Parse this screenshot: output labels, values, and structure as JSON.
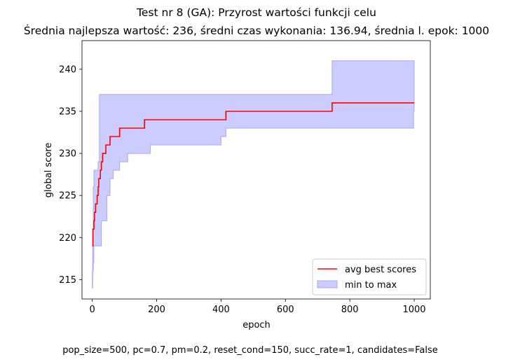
{
  "chart_data": {
    "type": "line",
    "title": "Test nr 8 (GA): Przyrost wartości funkcji celu",
    "subtitle": "Średnia najlepsza wartość: 236, średni czas wykonania: 136.94, średnia l. epok: 1000",
    "xlabel": "epoch",
    "ylabel": "global score",
    "caption": "pop_size=500, pc=0.7, pm=0.2, reset_cond=150, succ_rate=1, candidates=False",
    "xlim": [
      -32,
      1050
    ],
    "ylim": [
      212.7,
      243.4
    ],
    "xticks": [
      0,
      200,
      400,
      600,
      800,
      1000
    ],
    "yticks": [
      215,
      220,
      225,
      230,
      235,
      240
    ],
    "grid": false,
    "legend_position": "lower right",
    "legend": [
      "avg best scores",
      "min to max"
    ],
    "colors": {
      "avg_line": "#ff0000",
      "band_fill": "#ccccff",
      "band_edge": "#a8a8f0"
    },
    "series": [
      {
        "name": "avg best scores",
        "kind": "step",
        "points": [
          [
            0,
            219
          ],
          [
            2,
            221
          ],
          [
            5,
            222
          ],
          [
            7,
            223
          ],
          [
            10,
            224
          ],
          [
            15,
            225
          ],
          [
            18,
            226
          ],
          [
            20,
            227
          ],
          [
            25,
            228
          ],
          [
            28,
            229
          ],
          [
            32,
            230
          ],
          [
            42,
            231
          ],
          [
            55,
            232
          ],
          [
            65,
            232
          ],
          [
            85,
            233
          ],
          [
            110,
            233
          ],
          [
            162,
            234
          ],
          [
            250,
            234
          ],
          [
            415,
            235
          ],
          [
            600,
            235
          ],
          [
            745,
            236
          ],
          [
            1000,
            236
          ]
        ]
      },
      {
        "name": "min to max",
        "kind": "band",
        "x": [
          0,
          1,
          3,
          5,
          8,
          10,
          14,
          18,
          22,
          28,
          35,
          45,
          55,
          65,
          85,
          110,
          180,
          250,
          400,
          415,
          500,
          745,
          990,
          998,
          1000
        ],
        "min": [
          214,
          216,
          217,
          219,
          219,
          219,
          219,
          219,
          219,
          222,
          222,
          225,
          227,
          228,
          229,
          230,
          231,
          231,
          232,
          233,
          233,
          233,
          233,
          235,
          235
        ],
        "max": [
          216,
          221,
          226,
          228,
          228,
          228,
          228,
          229,
          237,
          237,
          237,
          237,
          237,
          237,
          237,
          237,
          237,
          237,
          237,
          237,
          237,
          241,
          241,
          241,
          241
        ]
      }
    ]
  }
}
